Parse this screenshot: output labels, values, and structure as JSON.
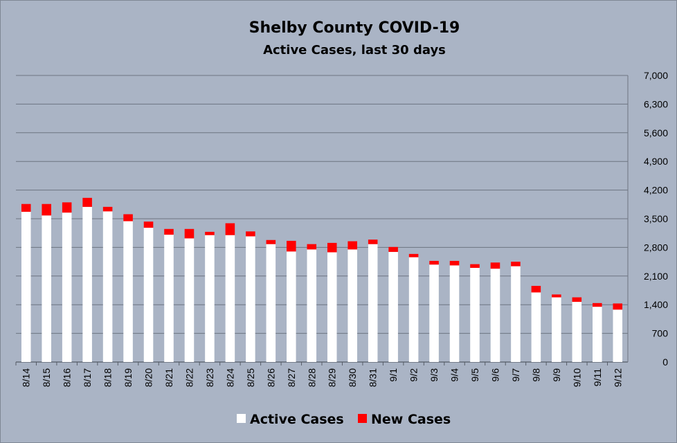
{
  "chart_data": {
    "type": "bar",
    "stacked": true,
    "title": "Shelby County COVID-19",
    "subtitle": "Active Cases, last 30 days",
    "categories": [
      "8/14",
      "8/15",
      "8/16",
      "8/17",
      "8/18",
      "8/19",
      "8/20",
      "8/21",
      "8/22",
      "8/23",
      "8/24",
      "8/25",
      "8/26",
      "8/27",
      "8/28",
      "8/29",
      "8/30",
      "8/31",
      "9/1",
      "9/2",
      "9/3",
      "9/4",
      "9/5",
      "9/6",
      "9/7",
      "9/8",
      "9/9",
      "9/10",
      "9/11",
      "9/12"
    ],
    "series": [
      {
        "name": "Active Cases",
        "color": "#ffffff",
        "values": [
          3670,
          3580,
          3650,
          3790,
          3680,
          3440,
          3280,
          3110,
          3020,
          3100,
          3100,
          3070,
          2880,
          2700,
          2750,
          2680,
          2750,
          2880,
          2690,
          2560,
          2380,
          2360,
          2300,
          2280,
          2340,
          1700,
          1580,
          1470,
          1350,
          1280
        ]
      },
      {
        "name": "New Cases",
        "color": "#ff0000",
        "values": [
          190,
          280,
          250,
          220,
          110,
          170,
          150,
          140,
          230,
          80,
          290,
          120,
          100,
          260,
          130,
          230,
          200,
          110,
          120,
          80,
          90,
          110,
          90,
          150,
          110,
          160,
          70,
          110,
          90,
          150
        ]
      }
    ],
    "y_axis": {
      "min": 0,
      "max": 7000,
      "ticks": [
        "0",
        "700",
        "1,400",
        "2,100",
        "2,800",
        "3,500",
        "4,200",
        "4,900",
        "5,600",
        "6,300",
        "7,000"
      ],
      "position": "right",
      "gridlines": true
    },
    "x_tick_rotation": "vertical",
    "legend_position": "bottom"
  }
}
